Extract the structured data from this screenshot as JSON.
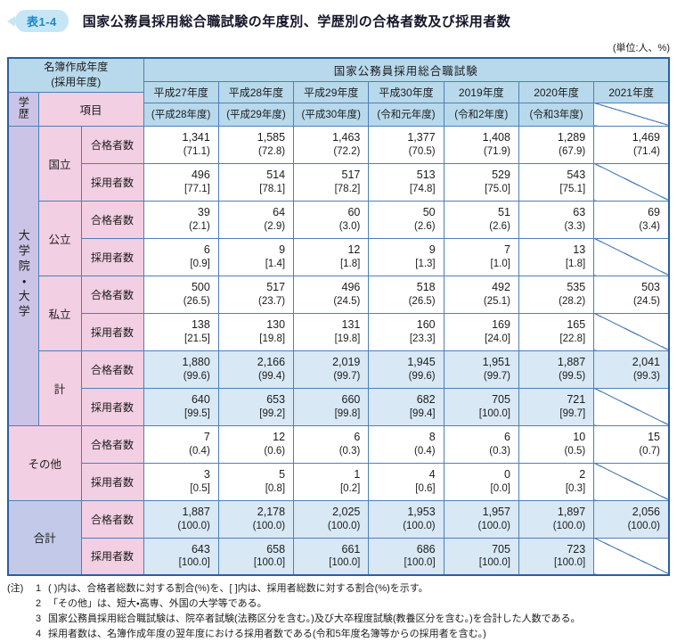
{
  "title": {
    "badge": "表1-4",
    "text": "国家公務員採用総合職試験の年度別、学歴別の合格者数及び採用者数"
  },
  "unit_note": "(単位:人、%)",
  "table": {
    "corner": {
      "line1": "名簿作成年度",
      "line2": "(採用年度)"
    },
    "exam_header": "国家公務員採用総合職試験",
    "axis": {
      "gakureki": "学歴",
      "koumoku": "項目"
    },
    "years": [
      {
        "label": "平成27年度",
        "hire": "(平成28年度)"
      },
      {
        "label": "平成28年度",
        "hire": "(平成29年度)"
      },
      {
        "label": "平成29年度",
        "hire": "(平成30年度)"
      },
      {
        "label": "平成30年度",
        "hire": "(令和元年度)"
      },
      {
        "label": "2019年度",
        "hire": "(令和2年度)"
      },
      {
        "label": "2020年度",
        "hire": "(令和3年度)"
      },
      {
        "label": "2021年度",
        "hire": null
      }
    ],
    "groups": {
      "university": "大学院・大学",
      "subgroups": [
        "国立",
        "公立",
        "私立",
        "計"
      ],
      "other": "その他",
      "total": "合計"
    },
    "rows": [
      {
        "group": "国立",
        "metric": "合格者数",
        "highlight": false,
        "cells": [
          [
            "1,341",
            "(71.1)"
          ],
          [
            "1,585",
            "(72.8)"
          ],
          [
            "1,463",
            "(72.2)"
          ],
          [
            "1,377",
            "(70.5)"
          ],
          [
            "1,408",
            "(71.9)"
          ],
          [
            "1,289",
            "(67.9)"
          ],
          [
            "1,469",
            "(71.4)"
          ]
        ]
      },
      {
        "group": "国立",
        "metric": "採用者数",
        "highlight": false,
        "cells": [
          [
            "496",
            "[77.1]"
          ],
          [
            "514",
            "[78.1]"
          ],
          [
            "517",
            "[78.2]"
          ],
          [
            "513",
            "[74.8]"
          ],
          [
            "529",
            "[75.0]"
          ],
          [
            "543",
            "[75.1]"
          ],
          null
        ]
      },
      {
        "group": "公立",
        "metric": "合格者数",
        "highlight": false,
        "cells": [
          [
            "39",
            "(2.1)"
          ],
          [
            "64",
            "(2.9)"
          ],
          [
            "60",
            "(3.0)"
          ],
          [
            "50",
            "(2.6)"
          ],
          [
            "51",
            "(2.6)"
          ],
          [
            "63",
            "(3.3)"
          ],
          [
            "69",
            "(3.4)"
          ]
        ]
      },
      {
        "group": "公立",
        "metric": "採用者数",
        "highlight": false,
        "cells": [
          [
            "6",
            "[0.9]"
          ],
          [
            "9",
            "[1.4]"
          ],
          [
            "12",
            "[1.8]"
          ],
          [
            "9",
            "[1.3]"
          ],
          [
            "7",
            "[1.0]"
          ],
          [
            "13",
            "[1.8]"
          ],
          null
        ]
      },
      {
        "group": "私立",
        "metric": "合格者数",
        "highlight": false,
        "cells": [
          [
            "500",
            "(26.5)"
          ],
          [
            "517",
            "(23.7)"
          ],
          [
            "496",
            "(24.5)"
          ],
          [
            "518",
            "(26.5)"
          ],
          [
            "492",
            "(25.1)"
          ],
          [
            "535",
            "(28.2)"
          ],
          [
            "503",
            "(24.5)"
          ]
        ]
      },
      {
        "group": "私立",
        "metric": "採用者数",
        "highlight": false,
        "cells": [
          [
            "138",
            "[21.5]"
          ],
          [
            "130",
            "[19.8]"
          ],
          [
            "131",
            "[19.8]"
          ],
          [
            "160",
            "[23.3]"
          ],
          [
            "169",
            "[24.0]"
          ],
          [
            "165",
            "[22.8]"
          ],
          null
        ]
      },
      {
        "group": "計",
        "metric": "合格者数",
        "highlight": true,
        "cells": [
          [
            "1,880",
            "(99.6)"
          ],
          [
            "2,166",
            "(99.4)"
          ],
          [
            "2,019",
            "(99.7)"
          ],
          [
            "1,945",
            "(99.6)"
          ],
          [
            "1,951",
            "(99.7)"
          ],
          [
            "1,887",
            "(99.5)"
          ],
          [
            "2,041",
            "(99.3)"
          ]
        ]
      },
      {
        "group": "計",
        "metric": "採用者数",
        "highlight": true,
        "cells": [
          [
            "640",
            "[99.5]"
          ],
          [
            "653",
            "[99.2]"
          ],
          [
            "660",
            "[99.8]"
          ],
          [
            "682",
            "[99.4]"
          ],
          [
            "705",
            "[100.0]"
          ],
          [
            "721",
            "[99.7]"
          ],
          null
        ]
      },
      {
        "group": "その他",
        "metric": "合格者数",
        "highlight": false,
        "cells": [
          [
            "7",
            "(0.4)"
          ],
          [
            "12",
            "(0.6)"
          ],
          [
            "6",
            "(0.3)"
          ],
          [
            "8",
            "(0.4)"
          ],
          [
            "6",
            "(0.3)"
          ],
          [
            "10",
            "(0.5)"
          ],
          [
            "15",
            "(0.7)"
          ]
        ]
      },
      {
        "group": "その他",
        "metric": "採用者数",
        "highlight": false,
        "cells": [
          [
            "3",
            "[0.5]"
          ],
          [
            "5",
            "[0.8]"
          ],
          [
            "1",
            "[0.2]"
          ],
          [
            "4",
            "[0.6]"
          ],
          [
            "0",
            "[0.0]"
          ],
          [
            "2",
            "[0.3]"
          ],
          null
        ]
      },
      {
        "group": "合計",
        "metric": "合格者数",
        "highlight": true,
        "cells": [
          [
            "1,887",
            "(100.0)"
          ],
          [
            "2,178",
            "(100.0)"
          ],
          [
            "2,025",
            "(100.0)"
          ],
          [
            "1,953",
            "(100.0)"
          ],
          [
            "1,957",
            "(100.0)"
          ],
          [
            "1,897",
            "(100.0)"
          ],
          [
            "2,056",
            "(100.0)"
          ]
        ]
      },
      {
        "group": "合計",
        "metric": "採用者数",
        "highlight": true,
        "cells": [
          [
            "643",
            "[100.0]"
          ],
          [
            "658",
            "[100.0]"
          ],
          [
            "661",
            "[100.0]"
          ],
          [
            "686",
            "[100.0]"
          ],
          [
            "705",
            "[100.0]"
          ],
          [
            "723",
            "[100.0]"
          ],
          null
        ]
      }
    ]
  },
  "notes": {
    "label": "(注)",
    "items": [
      {
        "num": "1",
        "text": "(  )内は、合格者総数に対する割合(%)を、[  ]内は、採用者総数に対する割合(%)を示す。"
      },
      {
        "num": "2",
        "text": "「その他」は、短大・高専、外国の大学等である。"
      },
      {
        "num": "3",
        "text": "国家公務員採用総合職試験は、院卒者試験(法務区分を含む。)及び大卒程度試験(教養区分を含む。)を合計した人数である。"
      },
      {
        "num": "4",
        "text": "採用者数は、名簿作成年度の翌年度における採用者数である(令和5年度名簿等からの採用者を含む。)"
      }
    ]
  },
  "colors": {
    "grid": "#4e7fb8",
    "outer": "#2b5f9e",
    "header-blue": "#b8d9ec",
    "pink": "#f2cfe2",
    "purple": "#cbc4e6",
    "periwinkle": "#c3cae9",
    "highlight": "#d8e8f5",
    "badge-bg": "#c6e6f5",
    "badge-text": "#1e88c7",
    "title-text": "#15152a",
    "text": "#1c1c1c"
  }
}
